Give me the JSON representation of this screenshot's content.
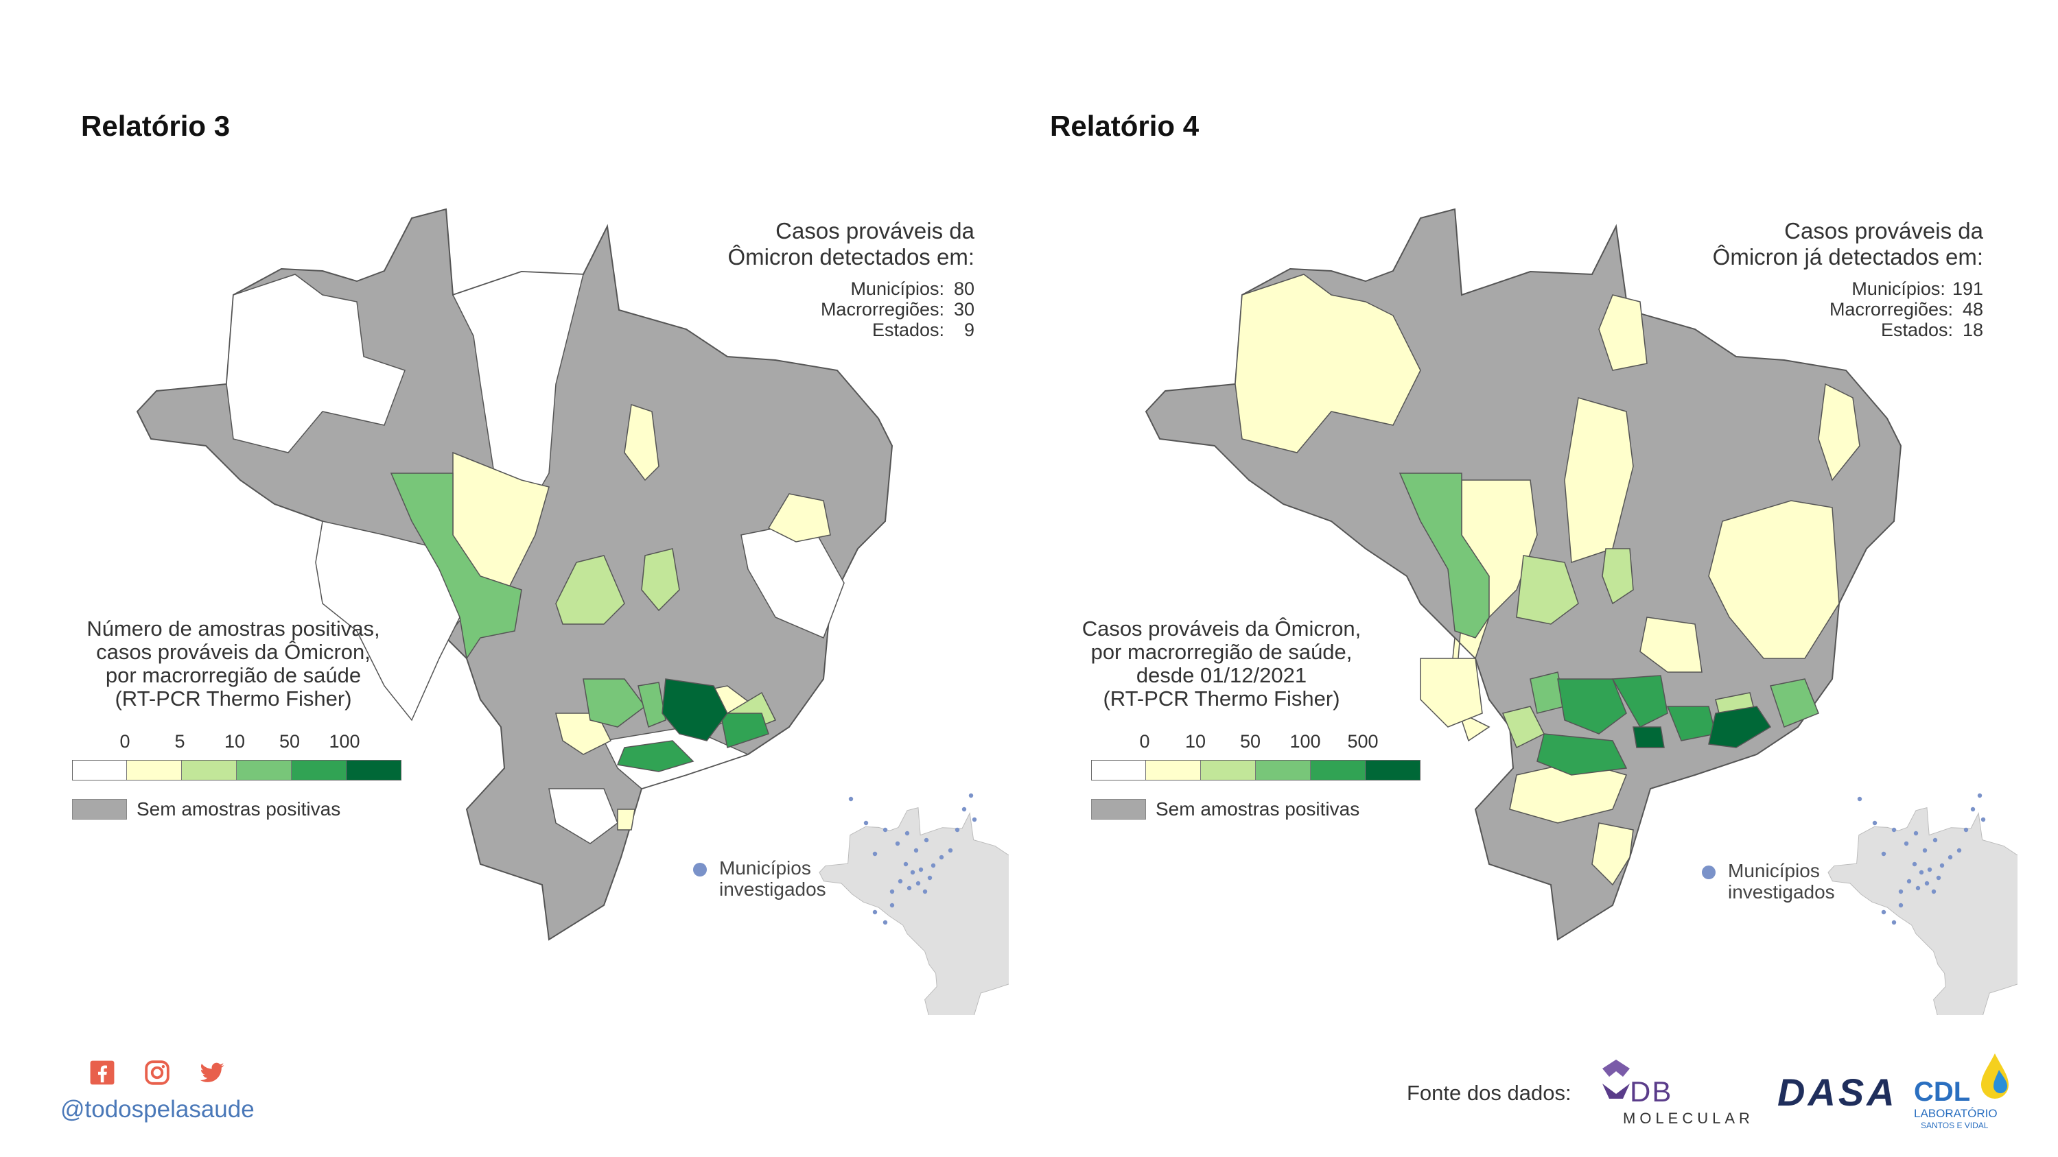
{
  "left": {
    "title": "Relatório 3",
    "cases": {
      "heading_line1": "Casos prováveis da",
      "heading_line2": "Ômicron detectados em:",
      "stats": [
        {
          "label": "Municípios:",
          "value": "80"
        },
        {
          "label": "Macrorregiões:",
          "value": "30"
        },
        {
          "label": "Estados:",
          "value": "9"
        }
      ]
    },
    "legend": {
      "title_lines": [
        "Número de amostras positivas,",
        "casos prováveis da Ômicron,",
        "por macrorregião de saúde",
        "(RT-PCR Thermo Fisher)"
      ],
      "ticks": [
        "0",
        "5",
        "10",
        "50",
        "100"
      ],
      "colors": [
        "#ffffff",
        "#ffffcc",
        "#c2e699",
        "#78c679",
        "#31a354",
        "#006837"
      ],
      "no_data_label": "Sem amostras positivas",
      "no_data_color": "#a8a8a8"
    },
    "inset": {
      "label_line1": "Municípios",
      "label_line2": "investigados",
      "dot_color": "#7a92c9"
    }
  },
  "right": {
    "title": "Relatório 4",
    "cases": {
      "heading_line1": "Casos prováveis da",
      "heading_line2": "Ômicron já detectados em:",
      "stats": [
        {
          "label": "Municípios:",
          "value": "191"
        },
        {
          "label": "Macrorregiões:",
          "value": "48"
        },
        {
          "label": "Estados:",
          "value": "18"
        }
      ]
    },
    "legend": {
      "title_lines": [
        "Casos prováveis da Ômicron,",
        "por macrorregião de saúde,",
        "desde 01/12/2021",
        "(RT-PCR Thermo Fisher)"
      ],
      "ticks": [
        "0",
        "10",
        "50",
        "100",
        "500"
      ],
      "colors": [
        "#ffffff",
        "#ffffcc",
        "#c2e699",
        "#78c679",
        "#31a354",
        "#006837"
      ],
      "no_data_label": "Sem amostras positivas",
      "no_data_color": "#a8a8a8"
    },
    "inset": {
      "label_line1": "Municípios",
      "label_line2": "investigados",
      "dot_color": "#7a92c9"
    }
  },
  "footer": {
    "handle": "@todospelasaude",
    "social_icons": [
      "facebook-icon",
      "instagram-icon",
      "twitter-icon"
    ],
    "social_color": "#e8604c",
    "source_label": "Fonte dos dados:",
    "logos": [
      {
        "name": "db-molecular-logo",
        "text_top": "DB",
        "text_bottom": "MOLECULAR"
      },
      {
        "name": "dasa-logo",
        "text": "DASA"
      },
      {
        "name": "cdl-logo",
        "text_top": "CDL",
        "text_mid": "LABORATÓRIO",
        "text_bottom": "SANTOS E VIDAL"
      }
    ]
  }
}
